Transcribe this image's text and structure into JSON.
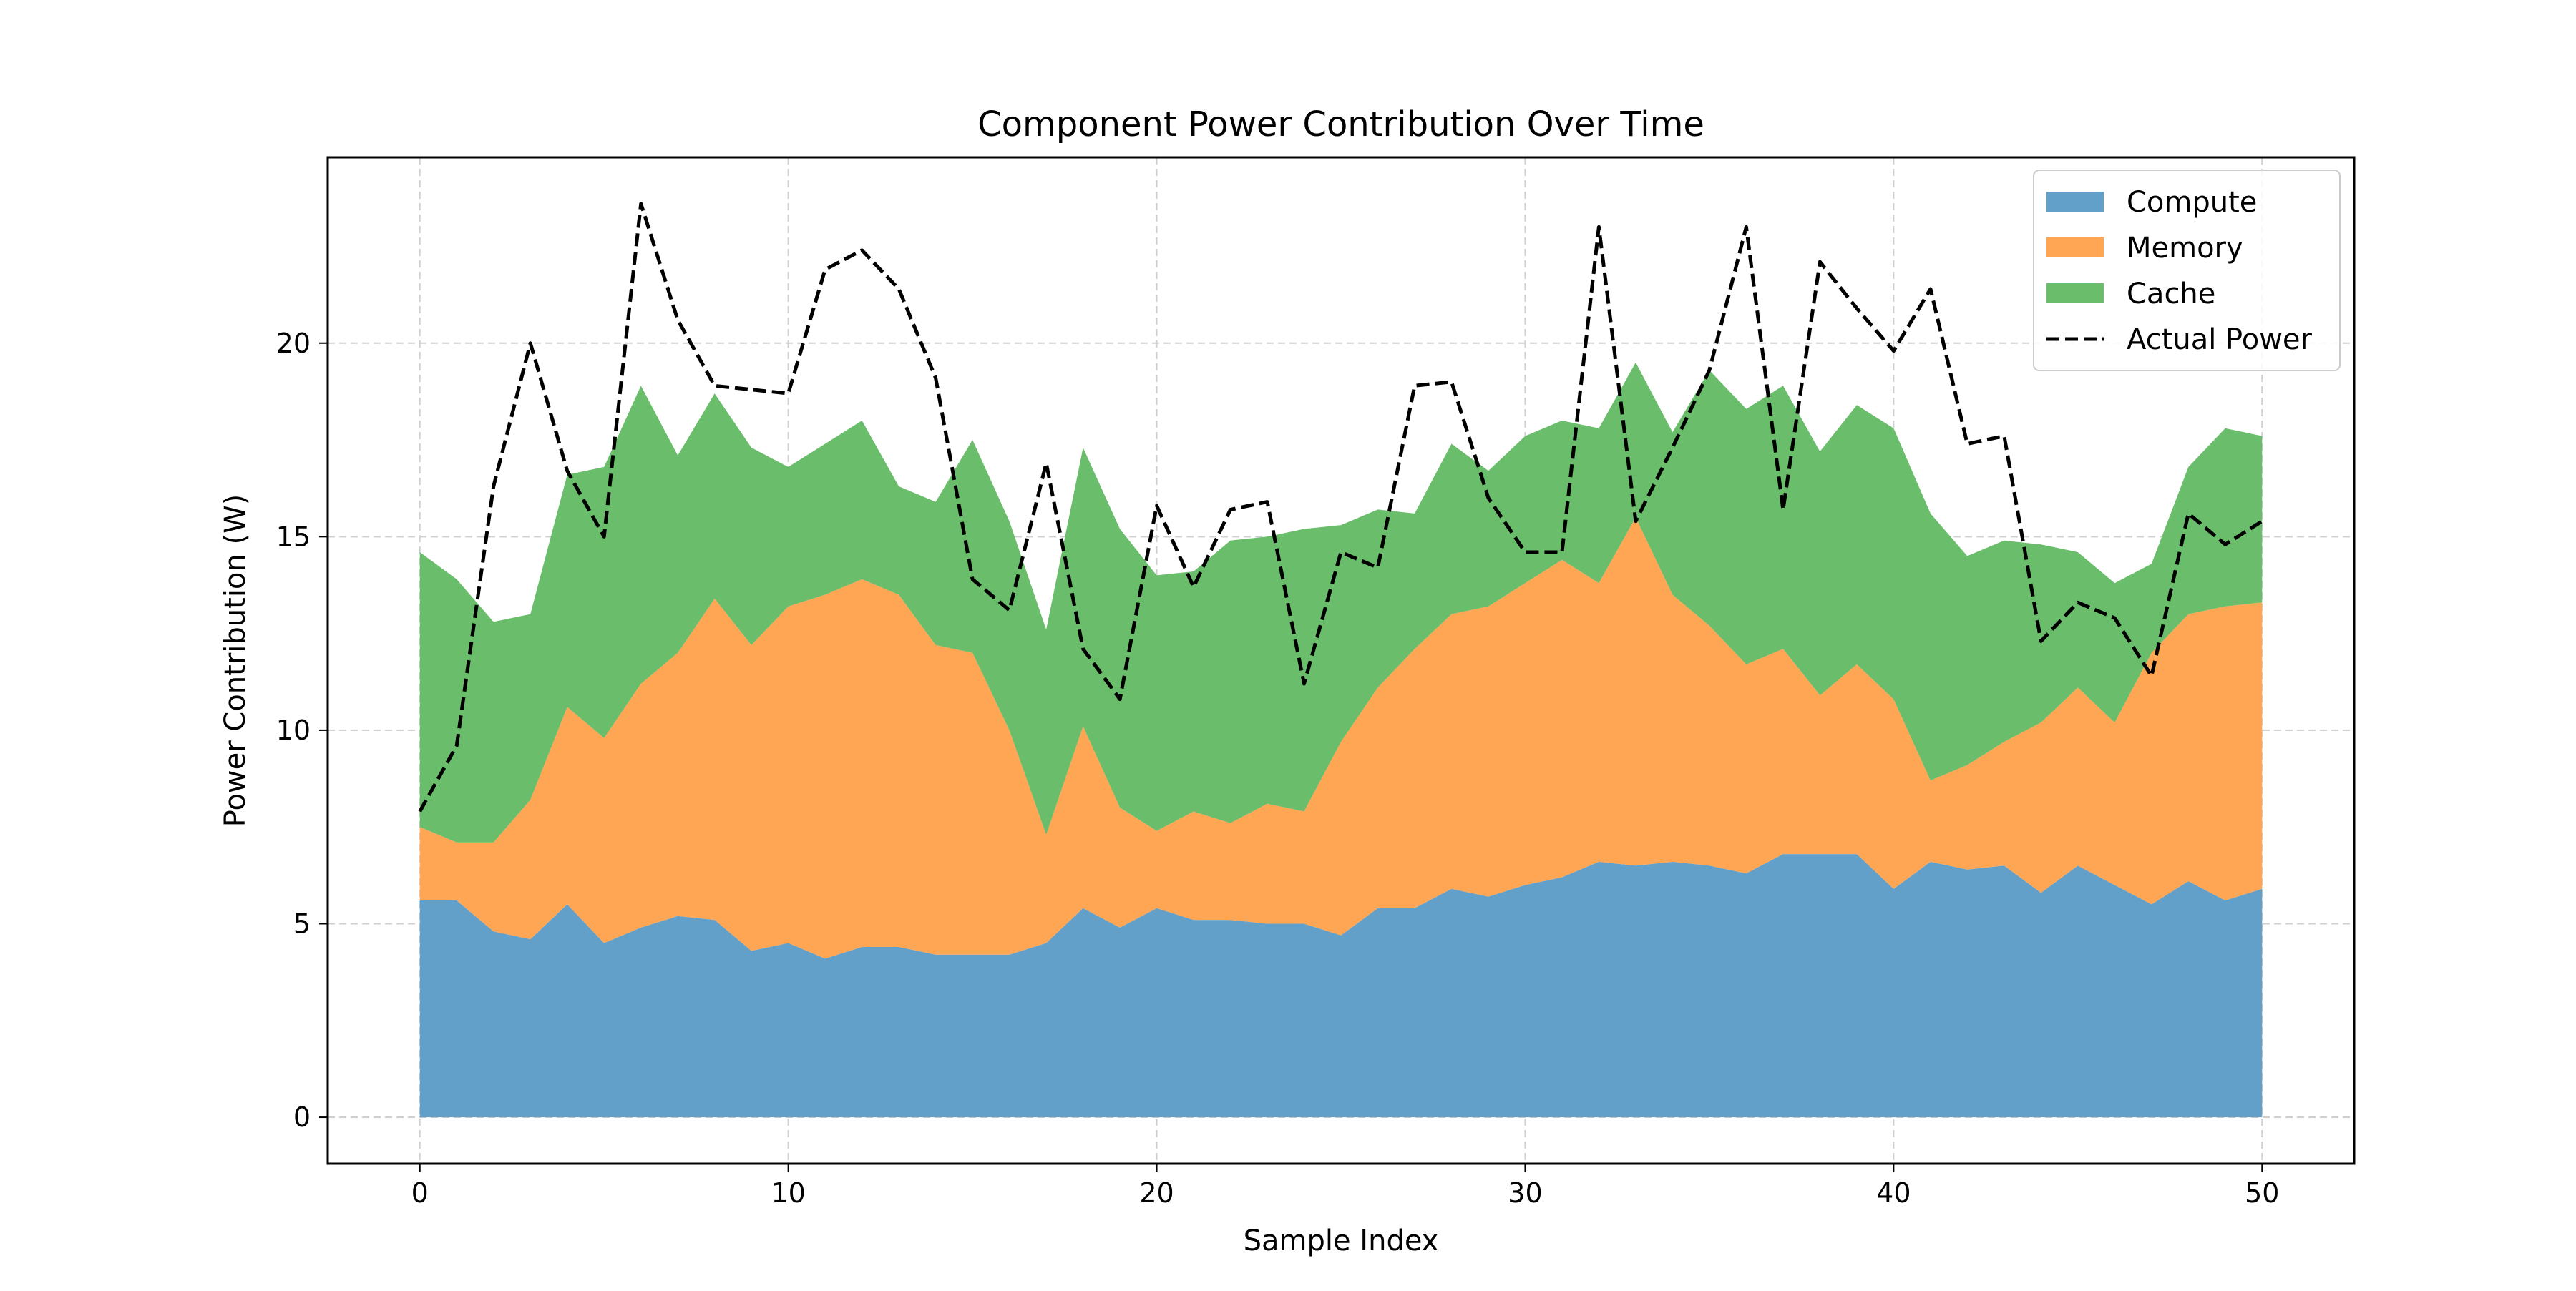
{
  "chart_data": {
    "type": "area",
    "stacked": true,
    "title": "Component Power Contribution Over Time",
    "xlabel": "Sample Index",
    "ylabel": "Power Contribution (W)",
    "xlim": [
      -2.5,
      52.5
    ],
    "ylim": [
      -1.2,
      24.8
    ],
    "xticks": [
      0,
      10,
      20,
      30,
      40,
      50
    ],
    "yticks": [
      0,
      5,
      10,
      15,
      20
    ],
    "grid": true,
    "legend_position": "top-right",
    "x": [
      0,
      1,
      2,
      3,
      4,
      5,
      6,
      7,
      8,
      9,
      10,
      11,
      12,
      13,
      14,
      15,
      16,
      17,
      18,
      19,
      20,
      21,
      22,
      23,
      24,
      25,
      26,
      27,
      28,
      29,
      30,
      31,
      32,
      33,
      34,
      35,
      36,
      37,
      38,
      39,
      40,
      41,
      42,
      43,
      44,
      45,
      46,
      47,
      48,
      49,
      50
    ],
    "series": [
      {
        "name": "Compute",
        "kind": "area",
        "color": "#62A0CA",
        "values": [
          5.6,
          5.6,
          4.8,
          4.6,
          5.5,
          4.5,
          4.9,
          5.2,
          5.1,
          4.3,
          4.5,
          4.1,
          4.4,
          4.4,
          4.2,
          4.2,
          4.2,
          4.5,
          5.4,
          4.9,
          5.4,
          5.1,
          5.1,
          5.0,
          5.0,
          4.7,
          5.4,
          5.4,
          5.9,
          5.7,
          6.0,
          6.2,
          6.6,
          6.5,
          6.6,
          6.5,
          6.3,
          6.8,
          6.8,
          6.8,
          5.9,
          6.6,
          6.4,
          6.5,
          5.8,
          6.5,
          6.0,
          5.5,
          6.1,
          5.6,
          5.9
        ]
      },
      {
        "name": "Memory",
        "kind": "area",
        "color": "#FFA654",
        "values": [
          1.9,
          1.5,
          2.3,
          3.6,
          5.1,
          5.3,
          6.3,
          6.8,
          8.3,
          7.9,
          8.7,
          9.4,
          9.5,
          9.1,
          8.0,
          7.8,
          5.8,
          2.8,
          4.7,
          3.1,
          2.0,
          2.8,
          2.5,
          3.1,
          2.9,
          5.0,
          5.7,
          6.7,
          7.1,
          7.5,
          7.8,
          8.2,
          7.2,
          9.0,
          6.9,
          6.2,
          5.4,
          5.3,
          4.1,
          4.9,
          4.9,
          2.1,
          2.7,
          3.2,
          4.4,
          4.6,
          4.2,
          6.5,
          6.9,
          7.6,
          7.4
        ]
      },
      {
        "name": "Cache",
        "kind": "area",
        "color": "#6ABD6B",
        "values": [
          7.1,
          6.8,
          5.7,
          4.8,
          6.0,
          7.0,
          7.7,
          5.1,
          5.3,
          5.1,
          3.6,
          3.9,
          4.1,
          2.8,
          3.7,
          5.5,
          5.4,
          5.3,
          7.2,
          7.2,
          6.6,
          6.2,
          7.3,
          6.9,
          7.3,
          5.6,
          4.6,
          3.5,
          4.4,
          3.5,
          3.8,
          3.6,
          4.0,
          4.0,
          4.2,
          6.6,
          6.6,
          6.8,
          6.3,
          6.7,
          7.0,
          6.9,
          5.4,
          5.2,
          4.6,
          3.5,
          3.6,
          2.3,
          3.8,
          4.6,
          4.3
        ]
      },
      {
        "name": "Actual Power",
        "kind": "line",
        "color": "#000000",
        "values": [
          7.9,
          9.6,
          16.3,
          20.0,
          16.7,
          15.0,
          23.6,
          20.6,
          18.9,
          18.8,
          18.7,
          21.9,
          22.4,
          21.4,
          19.1,
          13.9,
          13.1,
          16.9,
          12.1,
          10.8,
          15.8,
          13.7,
          15.7,
          15.9,
          11.2,
          14.6,
          14.2,
          18.9,
          19.0,
          16.0,
          14.6,
          14.6,
          23.0,
          15.4,
          17.3,
          19.3,
          23.0,
          15.7,
          22.1,
          20.9,
          19.8,
          21.4,
          17.4,
          17.6,
          12.3,
          13.3,
          12.9,
          11.4,
          15.6,
          14.8,
          15.4
        ]
      }
    ]
  }
}
